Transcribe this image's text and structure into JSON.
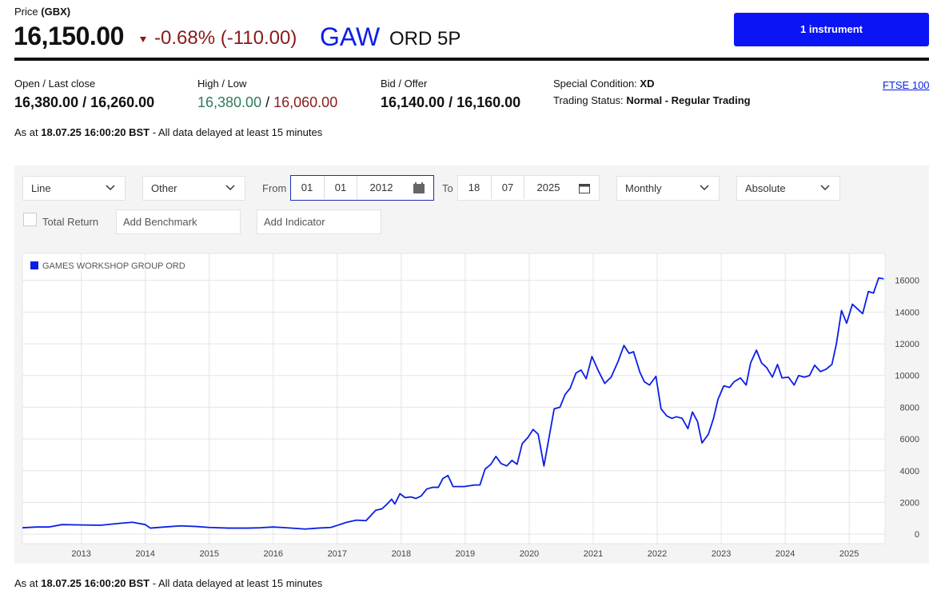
{
  "header": {
    "price_label": "Price",
    "currency": "(GBX)",
    "price": "16,150.00",
    "change": "-0.68% (-110.00)",
    "ticker": "GAW",
    "security": "ORD 5P",
    "button": "1 instrument"
  },
  "stats": {
    "open_close": {
      "label": "Open / Last close",
      "value": "16,380.00 / 16,260.00"
    },
    "high_low": {
      "label": "High / Low",
      "high": "16,380.00",
      "separator": "/",
      "low": "16,060.00"
    },
    "bid_offer": {
      "label": "Bid / Offer",
      "value": "16,140.00 / 16,160.00"
    },
    "special_condition": {
      "label": "Special Condition:",
      "value": "XD"
    },
    "trading_status": {
      "label": "Trading Status:",
      "value": "Normal - Regular Trading"
    },
    "index_link": "FTSE 100"
  },
  "as_at": {
    "prefix": "As at",
    "timestamp": "18.07.25 16:00:20 BST",
    "note": "- All data delayed at least 15 minutes"
  },
  "controls": {
    "chart_style": "Line",
    "other": "Other",
    "from_label": "From",
    "from": {
      "day": "01",
      "month": "01",
      "year": "2012"
    },
    "to_label": "To",
    "to": {
      "day": "18",
      "month": "07",
      "year": "2025"
    },
    "interval": "Monthly",
    "mode": "Absolute",
    "total_return": "Total Return",
    "benchmark": "Add Benchmark",
    "indicator": "Add Indicator"
  },
  "chart_data": {
    "type": "line",
    "x": [
      2012.08,
      2012.3,
      2012.5,
      2012.7,
      2013.0,
      2013.3,
      2013.6,
      2013.8,
      2014.0,
      2014.08,
      2014.3,
      2014.55,
      2014.8,
      2015.0,
      2015.3,
      2015.6,
      2015.8,
      2016.0,
      2016.2,
      2016.5,
      2016.7,
      2016.9,
      2017.0,
      2017.15,
      2017.3,
      2017.45,
      2017.6,
      2017.7,
      2017.78,
      2017.85,
      2017.9,
      2017.98,
      2018.06,
      2018.15,
      2018.23,
      2018.31,
      2018.4,
      2018.49,
      2018.58,
      2018.65,
      2018.73,
      2018.81,
      2018.98,
      2019.15,
      2019.23,
      2019.31,
      2019.4,
      2019.48,
      2019.56,
      2019.65,
      2019.73,
      2019.81,
      2019.89,
      2019.98,
      2020.06,
      2020.14,
      2020.23,
      2020.39,
      2020.48,
      2020.56,
      2020.64,
      2020.73,
      2020.81,
      2020.89,
      2020.98,
      2021.08,
      2021.18,
      2021.28,
      2021.39,
      2021.48,
      2021.56,
      2021.63,
      2021.73,
      2021.8,
      2021.88,
      2021.98,
      2022.06,
      2022.15,
      2022.23,
      2022.3,
      2022.39,
      2022.48,
      2022.55,
      2022.63,
      2022.7,
      2022.8,
      2022.88,
      2022.95,
      2023.04,
      2023.13,
      2023.2,
      2023.3,
      2023.39,
      2023.46,
      2023.55,
      2023.63,
      2023.71,
      2023.8,
      2023.88,
      2023.95,
      2024.05,
      2024.14,
      2024.21,
      2024.3,
      2024.38,
      2024.46,
      2024.55,
      2024.64,
      2024.73,
      2024.8,
      2024.88,
      2024.96,
      2025.05,
      2025.13,
      2025.21,
      2025.3,
      2025.38,
      2025.46,
      2025.54
    ],
    "series": [
      {
        "name": "GAMES WORKSHOP GROUP ORD",
        "color": "#0a1ee6",
        "values": [
          400,
          450,
          450,
          600,
          580,
          560,
          680,
          750,
          600,
          380,
          450,
          520,
          480,
          420,
          380,
          380,
          400,
          450,
          400,
          320,
          380,
          420,
          550,
          750,
          880,
          850,
          1500,
          1600,
          1900,
          2200,
          1900,
          2550,
          2300,
          2350,
          2250,
          2400,
          2850,
          2950,
          2950,
          3500,
          3700,
          3000,
          3000,
          3100,
          3100,
          4100,
          4400,
          4900,
          4450,
          4300,
          4650,
          4400,
          5700,
          6100,
          6600,
          6300,
          4300,
          7900,
          8000,
          8800,
          9200,
          10150,
          10350,
          9800,
          11200,
          10300,
          9500,
          9900,
          10900,
          11900,
          11400,
          11500,
          10200,
          9600,
          9400,
          9950,
          7900,
          7450,
          7300,
          7400,
          7300,
          6650,
          7700,
          7100,
          5750,
          6300,
          7300,
          8500,
          9350,
          9250,
          9600,
          9850,
          9400,
          10800,
          11600,
          10800,
          10500,
          9900,
          10700,
          9850,
          9900,
          9400,
          10000,
          9900,
          10000,
          10650,
          10250,
          10400,
          10700,
          12000,
          14100,
          13300,
          14500,
          14200,
          13900,
          15300,
          15200,
          16150,
          16100
        ]
      }
    ],
    "xlim": [
      2012.08,
      2025.56
    ],
    "xticks": [
      2013,
      2014,
      2015,
      2016,
      2017,
      2018,
      2019,
      2020,
      2021,
      2022,
      2023,
      2024,
      2025
    ],
    "ylim": [
      -600,
      17700
    ],
    "yticks": [
      0,
      2000,
      4000,
      6000,
      8000,
      10000,
      12000,
      14000,
      16000
    ],
    "grid": true
  }
}
